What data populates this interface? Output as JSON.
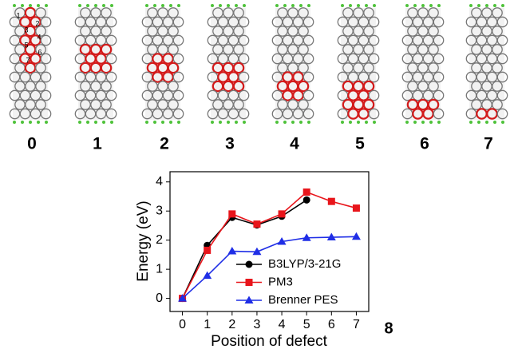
{
  "panels": {
    "labels": [
      "0",
      "1",
      "2",
      "3",
      "4",
      "5",
      "6",
      "7"
    ],
    "site_labels": [
      "1",
      "2",
      "3",
      "4",
      "5",
      "6",
      "7"
    ],
    "figure_number": "8"
  },
  "chart_data": {
    "type": "line",
    "xlabel": "Position of defect",
    "ylabel": "Energy (eV)",
    "x": [
      0,
      1,
      2,
      3,
      4,
      5,
      6,
      7
    ],
    "series": [
      {
        "name": "B3LYP/3-21G",
        "color": "#000000",
        "marker": "circle",
        "values": [
          0,
          1.82,
          2.78,
          2.52,
          2.82,
          3.38,
          null,
          null
        ]
      },
      {
        "name": "PM3",
        "color": "#e8151b",
        "marker": "square",
        "values": [
          0,
          1.65,
          2.9,
          2.55,
          2.9,
          3.65,
          3.33,
          3.1
        ]
      },
      {
        "name": "Brenner PES",
        "color": "#1f2ee6",
        "marker": "triangle",
        "values": [
          0,
          0.78,
          1.62,
          1.6,
          1.95,
          2.08,
          2.1,
          2.12
        ]
      }
    ],
    "xlim": [
      -0.5,
      7.5
    ],
    "xticks": [
      0,
      1,
      2,
      3,
      4,
      5,
      6,
      7
    ],
    "ylim": [
      -0.45,
      4.35
    ],
    "yticks": [
      0,
      1,
      2,
      3,
      4
    ],
    "legend": "lower right"
  }
}
